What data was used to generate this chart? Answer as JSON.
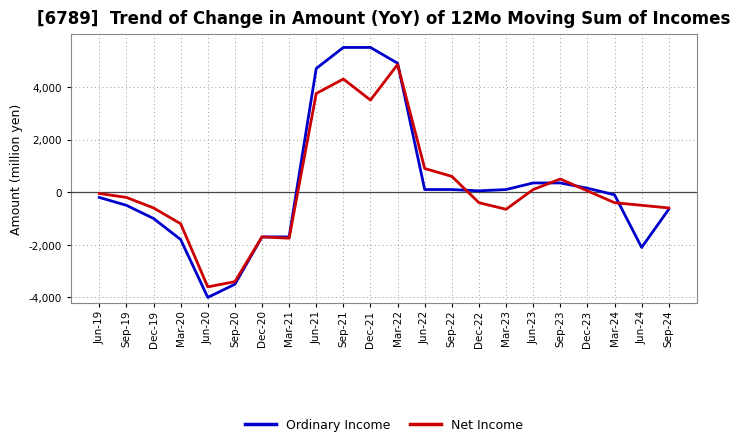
{
  "title": "[6789]  Trend of Change in Amount (YoY) of 12Mo Moving Sum of Incomes",
  "ylabel": "Amount (million yen)",
  "background_color": "#ffffff",
  "grid_color": "#999999",
  "x_labels": [
    "Jun-19",
    "Sep-19",
    "Dec-19",
    "Mar-20",
    "Jun-20",
    "Sep-20",
    "Dec-20",
    "Mar-21",
    "Jun-21",
    "Sep-21",
    "Dec-21",
    "Mar-22",
    "Jun-22",
    "Sep-22",
    "Dec-22",
    "Mar-23",
    "Jun-23",
    "Sep-23",
    "Dec-23",
    "Mar-24",
    "Jun-24",
    "Sep-24"
  ],
  "ordinary_income": [
    -200,
    -500,
    -1000,
    -1800,
    -4000,
    -3500,
    -1700,
    -1700,
    4700,
    5500,
    5500,
    4900,
    100,
    100,
    50,
    100,
    350,
    350,
    150,
    -100,
    -2100,
    -650
  ],
  "net_income": [
    -50,
    -200,
    -600,
    -1200,
    -3600,
    -3400,
    -1700,
    -1750,
    3750,
    4300,
    3500,
    4850,
    900,
    600,
    -400,
    -650,
    100,
    500,
    50,
    -400,
    -500,
    -600
  ],
  "ordinary_color": "#0000cc",
  "net_color": "#cc0000",
  "ylim": [
    -4200,
    6000
  ],
  "yticks": [
    -4000,
    -2000,
    0,
    2000,
    4000
  ],
  "legend_labels": [
    "Ordinary Income",
    "Net Income"
  ],
  "line_width": 2.0,
  "title_fontsize": 12,
  "ylabel_fontsize": 9,
  "tick_fontsize": 7.5
}
